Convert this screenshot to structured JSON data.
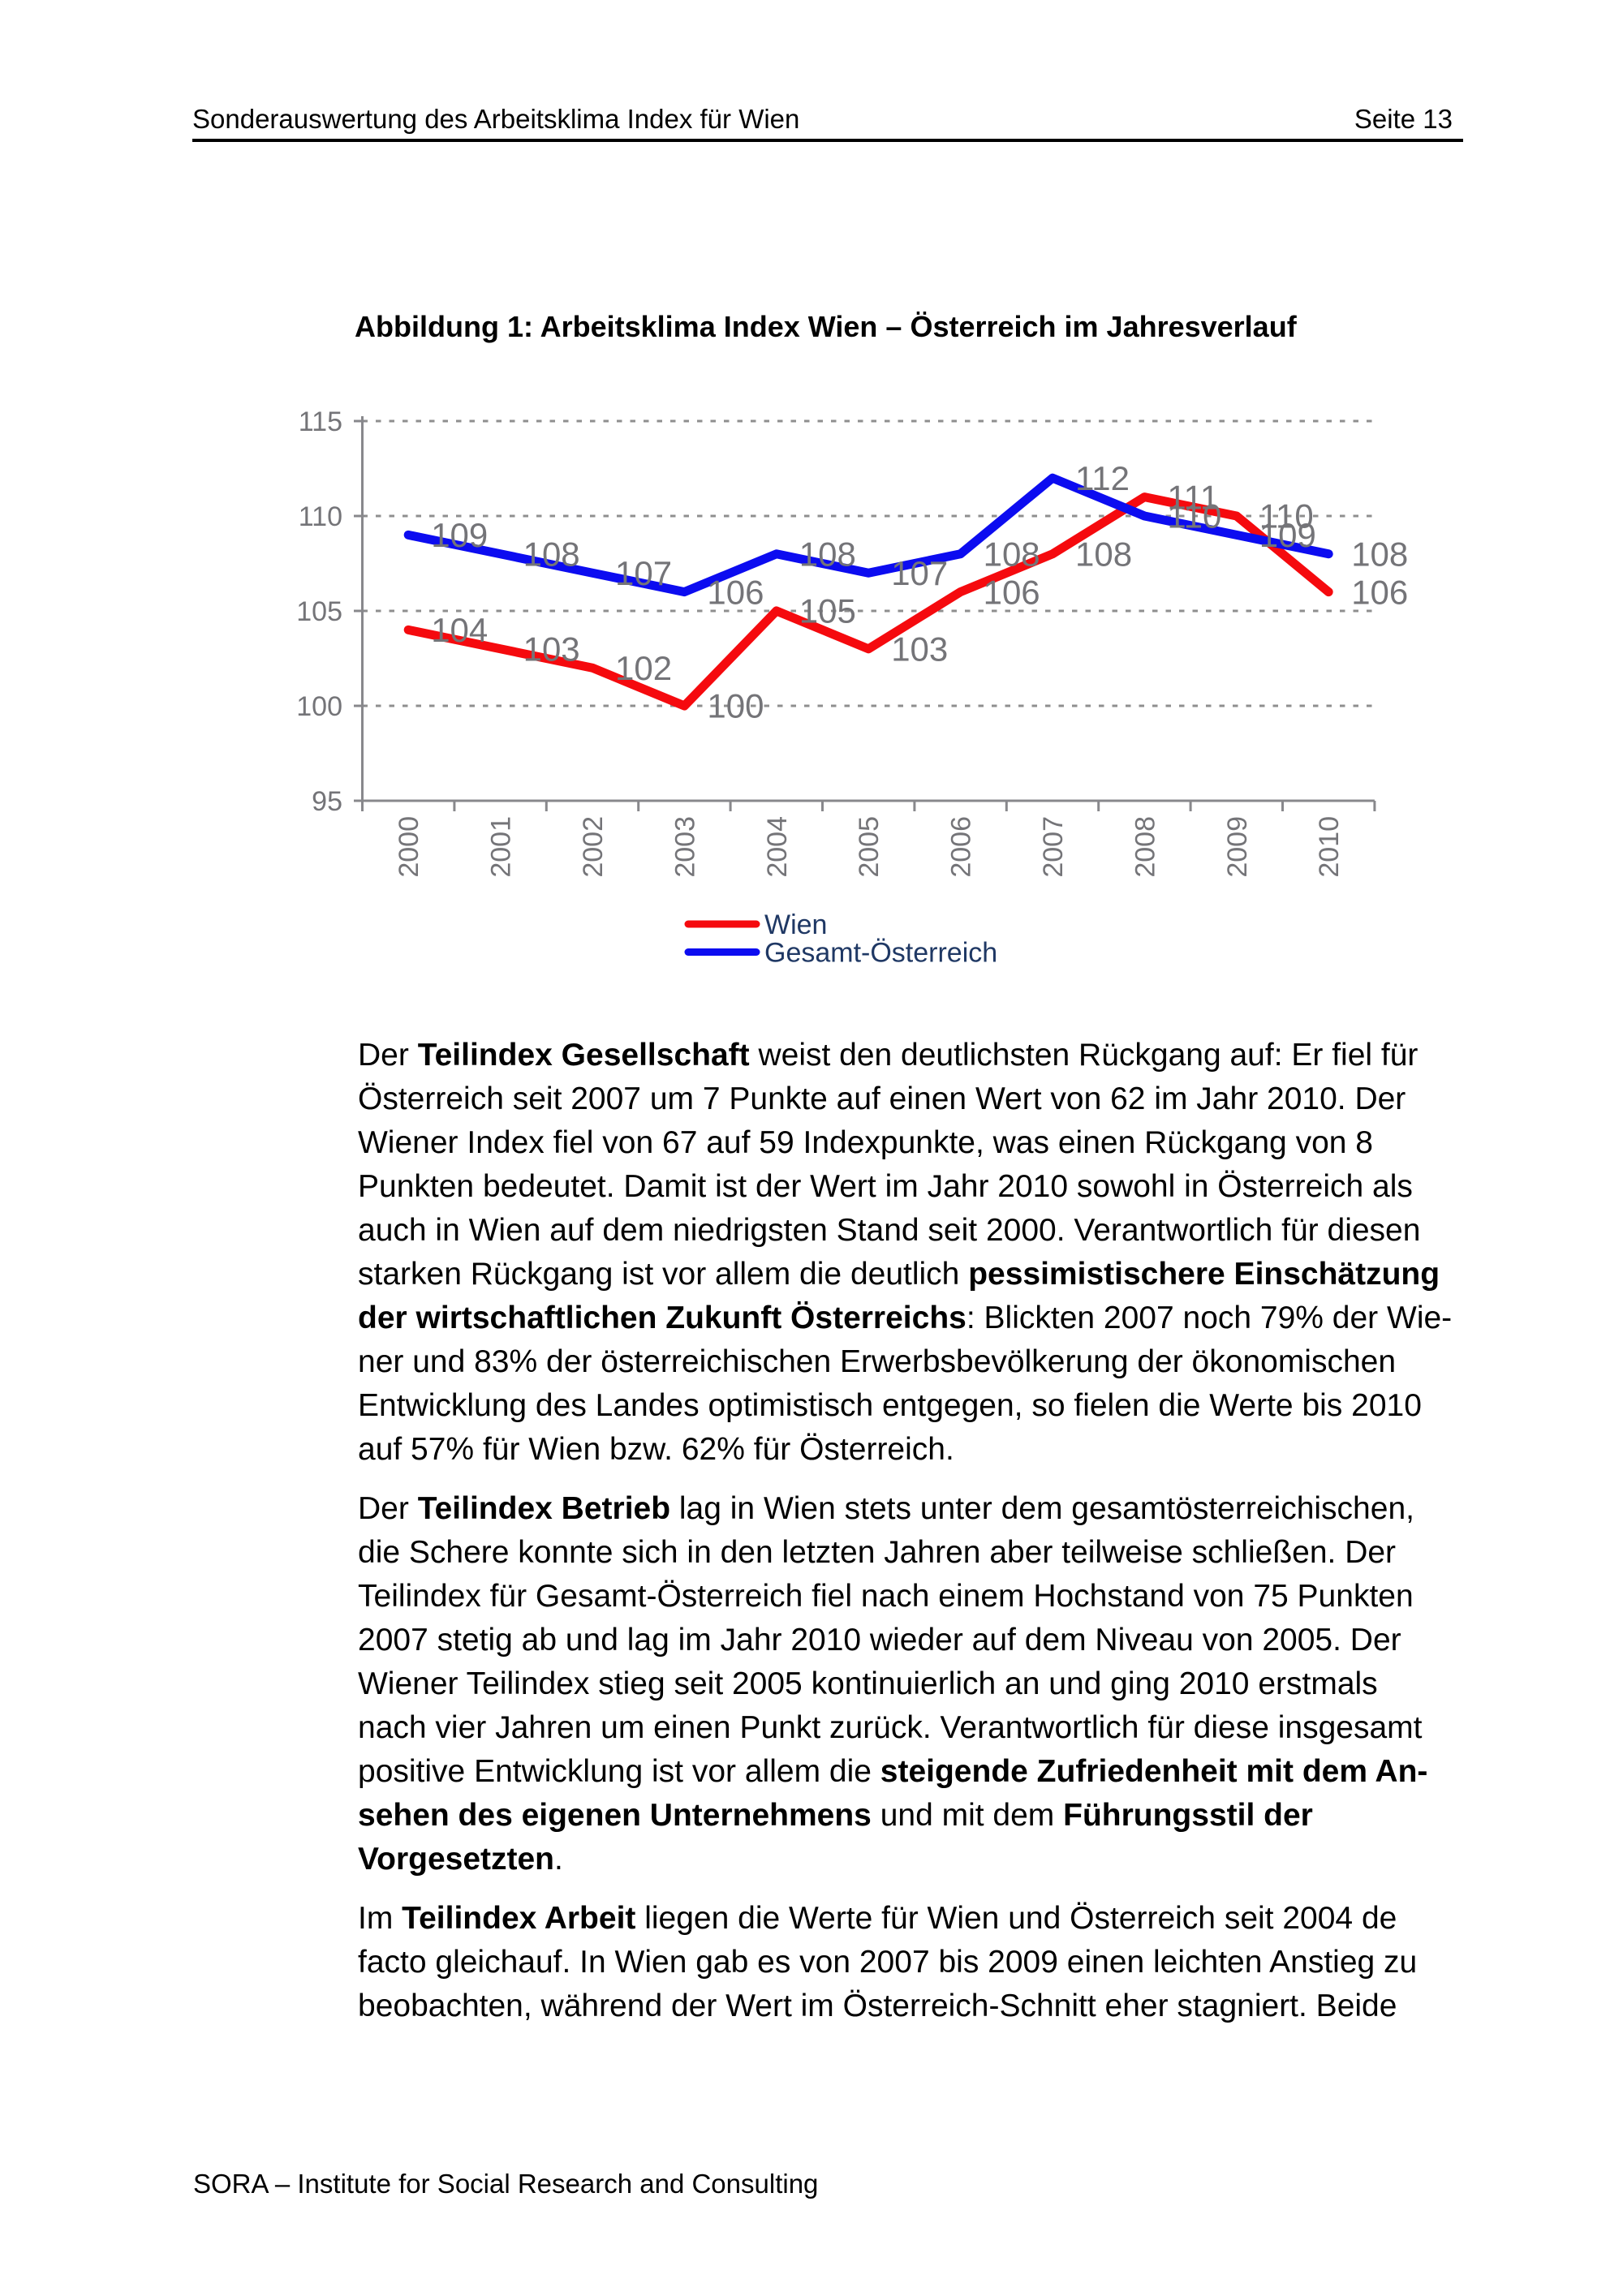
{
  "header": {
    "title": "Sonderauswertung des Arbeitsklima Index für Wien",
    "page_label": "Seite 13"
  },
  "figure": {
    "title": "Abbildung 1: Arbeitsklima Index Wien – Österreich im Jahresverlauf"
  },
  "chart_data": {
    "type": "line",
    "title": "Abbildung 1: Arbeitsklima Index Wien – Österreich im Jahresverlauf",
    "categories": [
      "2000",
      "2001",
      "2002",
      "2003",
      "2004",
      "2005",
      "2006",
      "2007",
      "2008",
      "2009",
      "2010"
    ],
    "series": [
      {
        "name": "Wien",
        "color": "#f50a0e",
        "values": [
          104,
          103,
          102,
          100,
          105,
          103,
          106,
          108,
          111,
          110,
          106
        ]
      },
      {
        "name": "Gesamt-Österreich",
        "color": "#0c0cf0",
        "values": [
          109,
          108,
          107,
          106,
          108,
          107,
          108,
          112,
          110,
          109,
          108
        ]
      }
    ],
    "ylim": [
      95,
      115
    ],
    "yticks": [
      95,
      100,
      105,
      110,
      115
    ],
    "xlabel": "",
    "ylabel": "",
    "grid": "horizontal-dashed",
    "data_labels_position": "right-of-point",
    "legend_position": "bottom-center",
    "colors": {
      "chart_text": "#747478",
      "gridline": "#8f8f8f",
      "axis": "#88888c",
      "legend_text": "#1f3864"
    }
  },
  "paragraphs": [
    {
      "lines": [
        [
          {
            "t": "Der "
          },
          {
            "t": "Teilindex Gesellschaft",
            "b": true
          },
          {
            "t": " weist den deutlichsten Rückgang auf: Er fiel für"
          }
        ],
        [
          {
            "t": "Österreich seit 2007 um 7 Punkte auf einen Wert von 62 im Jahr 2010. Der"
          }
        ],
        [
          {
            "t": "Wiener Index fiel von 67 auf 59 Indexpunkte, was einen Rückgang von 8"
          }
        ],
        [
          {
            "t": "Punkten bedeutet. Damit ist der Wert im Jahr 2010 sowohl in Österreich als"
          }
        ],
        [
          {
            "t": "auch in Wien auf dem niedrigsten Stand seit 2000. Verantwortlich für diesen"
          }
        ],
        [
          {
            "t": "starken Rückgang ist vor allem die deutlich "
          },
          {
            "t": "pessimistischere Einschätzung",
            "b": true
          }
        ],
        [
          {
            "t": "der wirtschaftlichen Zukunft Österreichs",
            "b": true
          },
          {
            "t": ": Blickten 2007 noch 79% der Wie-"
          }
        ],
        [
          {
            "t": "ner und 83% der österreichischen Erwerbsbevölkerung der ökonomischen"
          }
        ],
        [
          {
            "t": "Entwicklung des Landes optimistisch entgegen, so fielen die Werte bis 2010"
          }
        ],
        [
          {
            "t": "auf 57% für Wien bzw. 62% für Österreich."
          }
        ]
      ]
    },
    {
      "lines": [
        [
          {
            "t": "Der "
          },
          {
            "t": "Teilindex Betrieb",
            "b": true
          },
          {
            "t": " lag in Wien stets unter dem gesamtösterreichischen,"
          }
        ],
        [
          {
            "t": "die Schere konnte sich in den letzten Jahren aber teilweise schließen. Der"
          }
        ],
        [
          {
            "t": "Teilindex für Gesamt-Österreich fiel nach einem Hochstand von 75 Punkten"
          }
        ],
        [
          {
            "t": "2007 stetig ab und lag im Jahr 2010 wieder auf dem Niveau von 2005. Der"
          }
        ],
        [
          {
            "t": "Wiener Teilindex stieg seit 2005 kontinuierlich an und ging 2010 erstmals"
          }
        ],
        [
          {
            "t": "nach vier Jahren um einen Punkt zurück. Verantwortlich für diese insgesamt"
          }
        ],
        [
          {
            "t": "positive Entwicklung ist vor allem die "
          },
          {
            "t": "steigende Zufriedenheit mit dem An-",
            "b": true
          }
        ],
        [
          {
            "t": "sehen des eigenen Unternehmens",
            "b": true
          },
          {
            "t": " und mit dem "
          },
          {
            "t": "Führungsstil der",
            "b": true
          }
        ],
        [
          {
            "t": "Vorgesetzten",
            "b": true
          },
          {
            "t": "."
          }
        ]
      ]
    },
    {
      "lines": [
        [
          {
            "t": "Im "
          },
          {
            "t": "Teilindex Arbeit",
            "b": true
          },
          {
            "t": " liegen die Werte für Wien und Österreich seit 2004 de"
          }
        ],
        [
          {
            "t": "facto gleichauf. In Wien gab es von 2007 bis 2009 einen leichten Anstieg zu"
          }
        ],
        [
          {
            "t": "beobachten, während der Wert im Österreich-Schnitt eher stagniert. Beide"
          }
        ]
      ]
    }
  ],
  "footer": {
    "text": "SORA – Institute for Social Research and Consulting"
  }
}
